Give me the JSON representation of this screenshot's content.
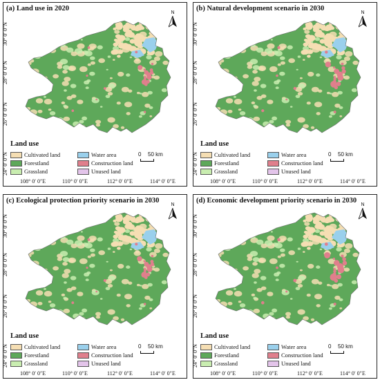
{
  "panels": [
    {
      "title": "(a) Land use in 2020",
      "construction_extent": 1.0
    },
    {
      "title": "(b) Natural development scenario in 2030",
      "construction_extent": 1.35
    },
    {
      "title": "(c) Ecological protection priority scenario in 2030",
      "construction_extent": 1.1
    },
    {
      "title": "(d) Economic development priority scenario in 2030",
      "construction_extent": 1.5
    }
  ],
  "north_label": "N",
  "legend_title": "Land use",
  "legend": [
    {
      "label": "Cultivated land",
      "color": "#f5deb3"
    },
    {
      "label": "Water area",
      "color": "#9ad0ec"
    },
    {
      "label": "Forestland",
      "color": "#5ea85a"
    },
    {
      "label": "Construction land",
      "color": "#e07f8c"
    },
    {
      "label": "Grassland",
      "color": "#c9edb0"
    },
    {
      "label": "Unused land",
      "color": "#e3c4ea"
    }
  ],
  "scale": {
    "zero": "0",
    "label": "50 km"
  },
  "lat_ticks": [
    "30° 0′ 0″N",
    "28° 0′ 0″N",
    "26° 0′ 0″N",
    "24° 0′ 0″N"
  ],
  "lon_ticks": [
    "108° 0′ 0″E",
    "110° 0′ 0″E",
    "112° 0′ 0″E",
    "114° 0′ 0″E"
  ]
}
